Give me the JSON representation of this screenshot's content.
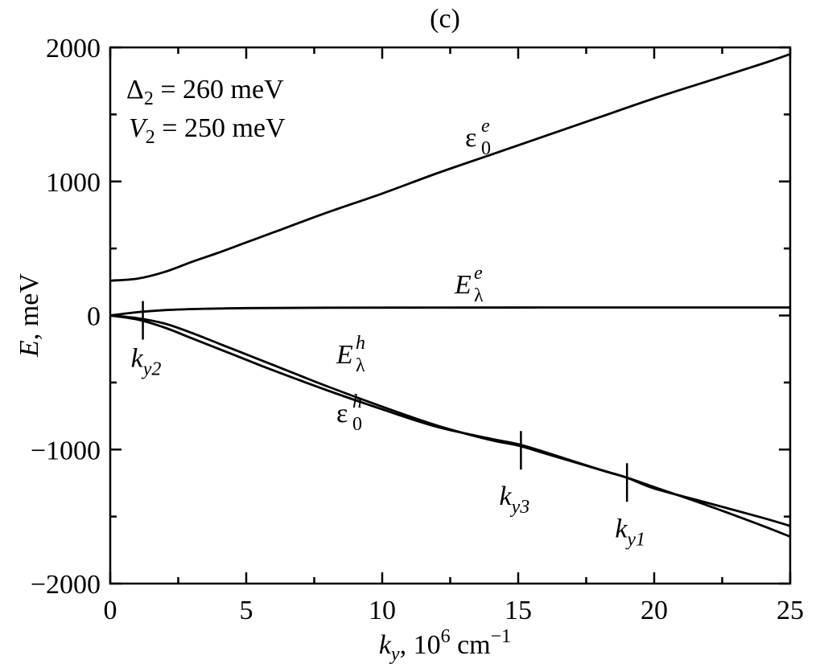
{
  "chart_data": {
    "type": "line",
    "panel_label": "(c)",
    "xlim": [
      0,
      25
    ],
    "ylim": [
      -2000,
      2000
    ],
    "x_ticks": [
      0,
      5,
      10,
      15,
      20,
      25
    ],
    "y_ticks": [
      -2000,
      -1000,
      0,
      1000,
      2000
    ],
    "x_tick_labels": [
      "0",
      "5",
      "10",
      "15",
      "20",
      "25"
    ],
    "y_tick_labels": [
      "−2000",
      "−1000",
      "0",
      "1000",
      "2000"
    ],
    "xlabel": {
      "k": "k",
      "sub": "y",
      "rest": ", 10",
      "exp": "6",
      "unit": " cm",
      "unit_exp": "−1"
    },
    "ylabel": {
      "var": "E",
      "rest": ", meV"
    },
    "params": [
      {
        "symbol": "Δ",
        "sub": "2",
        "value": " = 260 meV"
      },
      {
        "symbol": "V",
        "sub": "2",
        "value": " = 250 meV"
      }
    ],
    "series": [
      {
        "label": {
          "base": "ε",
          "sup": "e",
          "sub": "0"
        },
        "x": [
          0,
          1,
          2,
          3,
          4,
          5,
          6,
          8,
          10,
          12,
          14,
          16,
          18,
          20,
          22,
          24,
          25
        ],
        "y": [
          260,
          275,
          325,
          400,
          470,
          545,
          620,
          770,
          910,
          1060,
          1200,
          1340,
          1480,
          1620,
          1750,
          1880,
          1950
        ]
      },
      {
        "label": {
          "base": "E",
          "sup": "e",
          "sub": "λ"
        },
        "x": [
          0,
          1,
          2,
          3,
          4,
          5,
          8,
          12,
          16,
          20,
          25
        ],
        "y": [
          0,
          25,
          40,
          48,
          52,
          55,
          58,
          59,
          60,
          60,
          60
        ]
      },
      {
        "label": {
          "base": "E",
          "sup": "h",
          "sub": "λ"
        },
        "x": [
          0,
          1,
          2,
          3,
          4,
          5,
          6,
          8,
          10,
          12,
          14,
          15,
          16,
          18,
          19,
          20,
          22,
          24,
          25
        ],
        "y": [
          0,
          -20,
          -60,
          -130,
          -210,
          -290,
          -370,
          -530,
          -680,
          -820,
          -930,
          -970,
          -1030,
          -1150,
          -1210,
          -1290,
          -1400,
          -1510,
          -1570
        ]
      },
      {
        "label": {
          "base": "ε",
          "sup": "h",
          "sub": "0"
        },
        "x": [
          0,
          1,
          2,
          3,
          4,
          5,
          6,
          8,
          10,
          12,
          14,
          15,
          16,
          18,
          19,
          20,
          22,
          24,
          25
        ],
        "y": [
          0,
          -30,
          -90,
          -170,
          -250,
          -330,
          -410,
          -560,
          -700,
          -830,
          -920,
          -960,
          -1020,
          -1150,
          -1210,
          -1280,
          -1420,
          -1570,
          -1650
        ]
      }
    ],
    "markers": [
      {
        "x": 1.2,
        "y": 0,
        "label": {
          "base": "k",
          "sub": "y2"
        }
      },
      {
        "x": 15.1,
        "y": -970,
        "label": {
          "base": "k",
          "sub": "y3"
        }
      },
      {
        "x": 19.0,
        "y": -1210,
        "label": {
          "base": "k",
          "sub": "y1"
        }
      }
    ],
    "grid": false,
    "legend": "none"
  }
}
